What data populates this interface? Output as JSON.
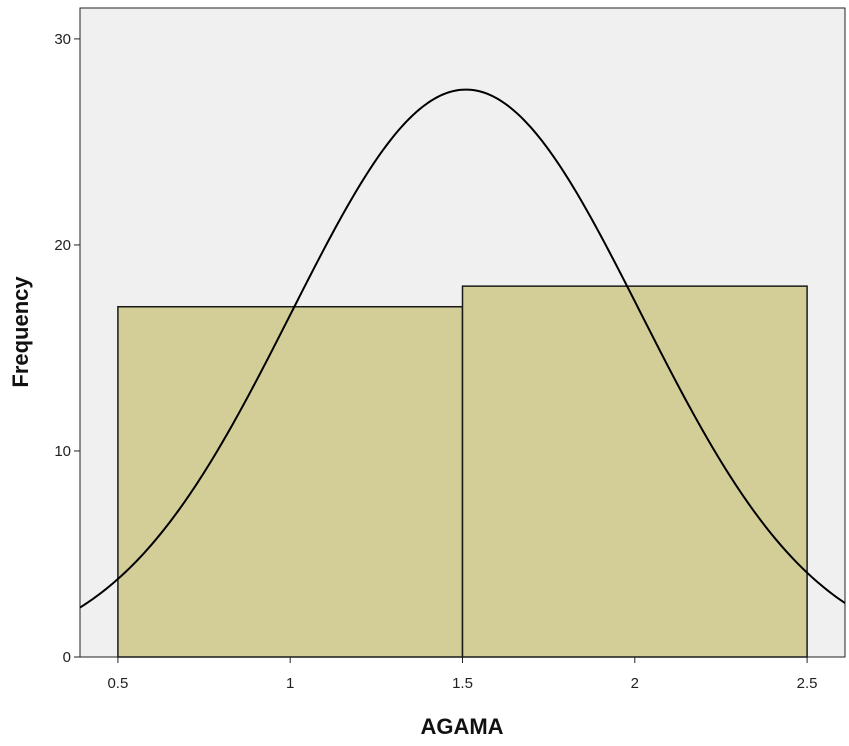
{
  "chart_data": {
    "type": "bar",
    "subtype": "histogram",
    "xlabel": "AGAMA",
    "ylabel": "Frequency",
    "xlim": [
      0.39,
      2.61
    ],
    "ylim": [
      0,
      31.5
    ],
    "x_ticks": [
      "0.5",
      "1",
      "1.5",
      "2",
      "2.5"
    ],
    "y_ticks": [
      "0",
      "10",
      "20",
      "30"
    ],
    "bins": [
      {
        "start": 0.5,
        "end": 1.5,
        "value": 17
      },
      {
        "start": 1.5,
        "end": 2.5,
        "value": 18
      }
    ],
    "normal_curve": {
      "mean": 1.51,
      "std_dev": 0.507,
      "n": 35
    },
    "colors": {
      "plot_background": "#f0f0f0",
      "bar_fill": "#d3ce98",
      "bar_stroke": "#1a1a1a",
      "curve": "#000000"
    },
    "grid": false,
    "legend": "none"
  }
}
